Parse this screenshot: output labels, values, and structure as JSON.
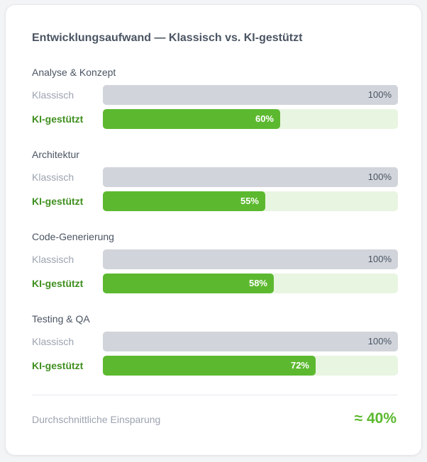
{
  "colors": {
    "classic": "#d1d5db",
    "ai": "#5cb92f",
    "ai_track": "#e8f5e1",
    "ai_label": "#3f8f1f"
  },
  "chart_data": {
    "type": "bar",
    "title": "Entwicklungsaufwand — Klassisch vs. KI-gestützt",
    "xlabel": "",
    "ylabel": "",
    "ylim": [
      0,
      100
    ],
    "unit": "%",
    "categories": [
      "Analyse & Konzept",
      "Architektur",
      "Code-Generierung",
      "Testing & QA"
    ],
    "series": [
      {
        "name": "Klassisch",
        "values": [
          100,
          100,
          100,
          100
        ],
        "labels": [
          "100%",
          "100%",
          "100%",
          "100%"
        ]
      },
      {
        "name": "KI-gestützt",
        "values": [
          60,
          55,
          58,
          72
        ],
        "labels": [
          "60%",
          "55%",
          "58%",
          "72%"
        ]
      }
    ]
  },
  "summary": {
    "label": "Durchschnittliche Einsparung",
    "value": "≈ 40%"
  }
}
